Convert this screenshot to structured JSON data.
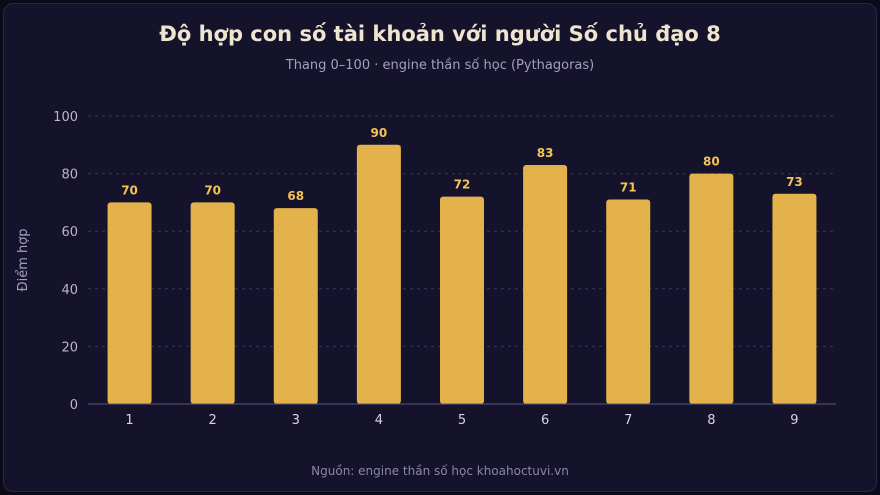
{
  "chart_data": {
    "type": "bar",
    "title": "Độ hợp con số tài khoản với người Số chủ đạo 8",
    "subtitle": "Thang 0–100 · engine thần số học (Pythagoras)",
    "source": "Nguồn: engine thần số học khoahoctuvi.vn",
    "xlabel": "",
    "ylabel": "Điểm hợp",
    "categories": [
      "1",
      "2",
      "3",
      "4",
      "5",
      "6",
      "7",
      "8",
      "9"
    ],
    "values": [
      70,
      70,
      68,
      90,
      72,
      83,
      71,
      80,
      73
    ],
    "ylim": [
      0,
      100
    ],
    "yticks": [
      0,
      20,
      40,
      60,
      80,
      100
    ],
    "grid": true,
    "colors": {
      "bar": "#e3b24a",
      "value_label": "#f2c453",
      "grid": "#3a365a",
      "background": "#15122b"
    }
  }
}
